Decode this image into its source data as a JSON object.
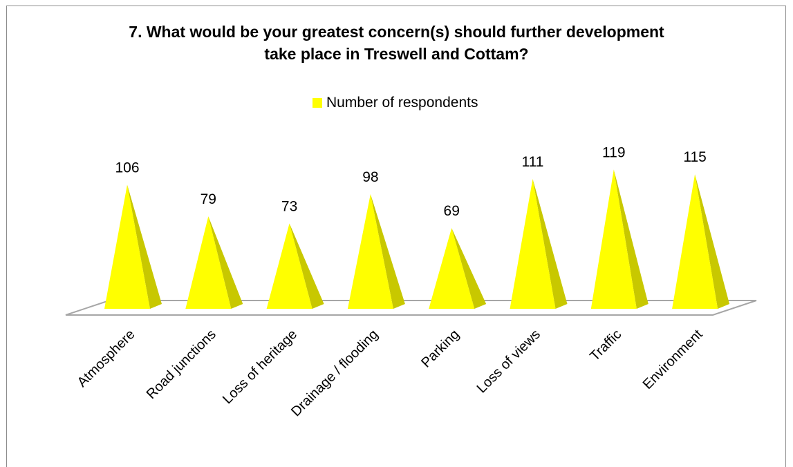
{
  "chart_data": {
    "type": "bar",
    "title_line1": "7. What would be your greatest concern(s) should further development",
    "title_line2": "take place in Treswell and Cottam?",
    "categories": [
      "Atmosphere",
      "Road junctions",
      "Loss of heritage",
      "Drainage / flooding",
      "Parking",
      "Loss of views",
      "Traffic",
      "Environment"
    ],
    "series": [
      {
        "name": "Number of respondents",
        "values": [
          106,
          79,
          73,
          98,
          69,
          111,
          119,
          115
        ],
        "color": "#ffff00"
      }
    ],
    "data_labels": [
      "106",
      "79",
      "73",
      "98",
      "69",
      "111",
      "119",
      "115"
    ],
    "bar_shape": "3d-pyramid",
    "legend_position": "top",
    "grid": false
  }
}
